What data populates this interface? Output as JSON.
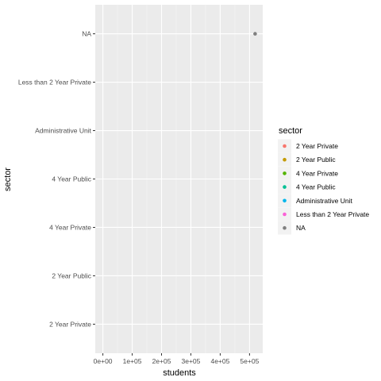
{
  "chart_data": {
    "type": "scatter",
    "xlabel": "students",
    "ylabel": "sector",
    "x_ticks": [
      {
        "value": 0,
        "label": "0e+00"
      },
      {
        "value": 100000,
        "label": "1e+05"
      },
      {
        "value": 200000,
        "label": "2e+05"
      },
      {
        "value": 300000,
        "label": "3e+05"
      },
      {
        "value": 400000,
        "label": "4e+05"
      },
      {
        "value": 500000,
        "label": "5e+05"
      }
    ],
    "xlim": [
      -26000,
      545000
    ],
    "categories": [
      "2 Year Private",
      "2 Year Public",
      "4 Year Private",
      "4 Year Public",
      "Administrative Unit",
      "Less than 2 Year Private",
      "NA"
    ],
    "grid": true,
    "legend": {
      "title": "sector",
      "position": "right",
      "items": [
        {
          "label": "2 Year Private",
          "color": "#F8766D"
        },
        {
          "label": "2 Year Public",
          "color": "#C49A00"
        },
        {
          "label": "4 Year Private",
          "color": "#53B400"
        },
        {
          "label": "4 Year Public",
          "color": "#00C094"
        },
        {
          "label": "Administrative Unit",
          "color": "#00B6EB"
        },
        {
          "label": "Less than 2 Year Private",
          "color": "#FB61D7"
        },
        {
          "label": "NA",
          "color": "#808080"
        }
      ]
    },
    "points": [
      {
        "x": 519000,
        "y": "NA",
        "color": "#808080"
      }
    ],
    "colors": {
      "panel": "#EBEBEB",
      "grid_major": "#FFFFFF",
      "grid_minor": "#F5F5F5"
    }
  }
}
